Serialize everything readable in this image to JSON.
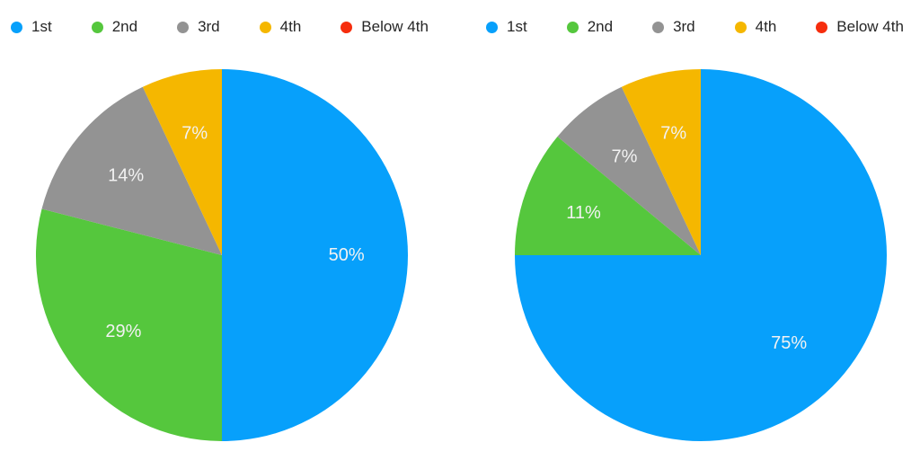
{
  "styles": {
    "background": "#FFFFFF",
    "slice_label_color": "#F2F2F2",
    "legend_text_color": "#262626"
  },
  "chart_data": [
    {
      "type": "pie",
      "name": "left-pie",
      "title": "",
      "categories": [
        "1st",
        "2nd",
        "3rd",
        "4th",
        "Below 4th"
      ],
      "values": [
        50,
        29,
        14,
        7,
        0
      ],
      "slice_labels": [
        "50%",
        "29%",
        "14%",
        "7%",
        ""
      ],
      "colors": [
        "#07A0FB",
        "#55C73D",
        "#939393",
        "#F5B700",
        "#F62D0D"
      ],
      "legend_position": "top",
      "start_angle_deg": 0,
      "direction": "clockwise",
      "label_radius_fraction": 0.67
    },
    {
      "type": "pie",
      "name": "right-pie",
      "title": "",
      "categories": [
        "1st",
        "2nd",
        "3rd",
        "4th",
        "Below 4th"
      ],
      "values": [
        75,
        11,
        7,
        7,
        0
      ],
      "slice_labels": [
        "75%",
        "11%",
        "7%",
        "7%",
        ""
      ],
      "colors": [
        "#07A0FB",
        "#55C73D",
        "#939393",
        "#F5B700",
        "#F62D0D"
      ],
      "legend_position": "top",
      "start_angle_deg": 0,
      "direction": "clockwise",
      "label_radius_fraction": 0.67
    }
  ]
}
